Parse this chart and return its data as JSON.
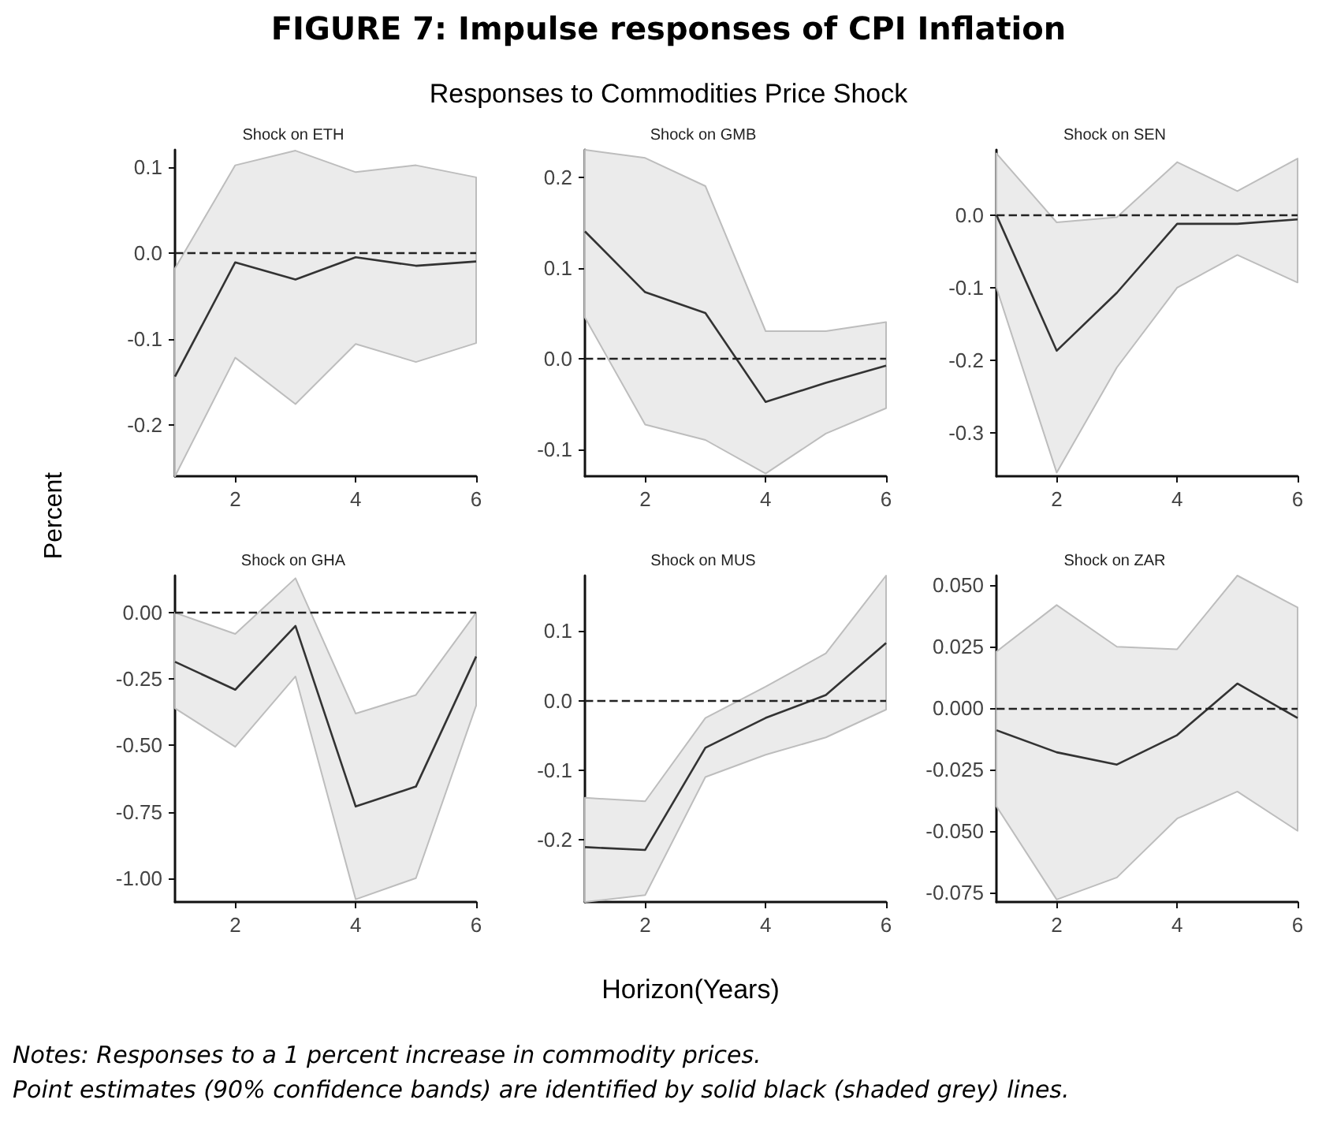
{
  "chart_data": [
    {
      "type": "other",
      "title": "FIGURE 7: Impulse responses of CPI Inflation",
      "subtitle": "Responses to Commodities Price Shock",
      "xlabel": "Horizon(Years)",
      "ylabel": "Percent",
      "annotations": [
        "Notes: Responses to a 1 percent increase in commodity prices.",
        "Point estimates (90% confidence bands) are identified by solid black (shaded grey) lines."
      ]
    },
    {
      "type": "line",
      "title": "Shock on ETH",
      "x": [
        1,
        2,
        3,
        4,
        5,
        6
      ],
      "xlim": [
        1,
        6
      ],
      "xticks": [
        2,
        4,
        6
      ],
      "ylim": [
        -0.26,
        0.12
      ],
      "yticks": [
        {
          "value": -0.2,
          "label": "-0.2"
        },
        {
          "value": -0.1,
          "label": "-0.1"
        },
        {
          "value": 0,
          "label": "0.0"
        },
        {
          "value": 0.1,
          "label": "0.1"
        }
      ],
      "marker": "none",
      "grid": false,
      "series": [
        {
          "color": "#333333",
          "values": [
            -0.144,
            -0.011,
            -0.031,
            -0.005,
            -0.015,
            -0.01
          ],
          "lower": [
            -0.26,
            -0.122,
            -0.176,
            -0.106,
            -0.127,
            -0.105
          ],
          "upper": [
            -0.018,
            0.102,
            0.119,
            0.094,
            0.102,
            0.088
          ]
        }
      ],
      "ref_lines": [
        {
          "axis": "y",
          "value": 0,
          "color": "#222222",
          "line_style": "dashed"
        }
      ]
    },
    {
      "type": "line",
      "title": "Shock on GMB",
      "x": [
        1,
        2,
        3,
        4,
        5,
        6
      ],
      "xlim": [
        1,
        6
      ],
      "xticks": [
        2,
        4,
        6
      ],
      "ylim": [
        -0.13,
        0.23
      ],
      "yticks": [
        {
          "value": -0.1,
          "label": "-0.1"
        },
        {
          "value": 0,
          "label": "0.0"
        },
        {
          "value": 0.1,
          "label": "0.1"
        },
        {
          "value": 0.2,
          "label": "0.2"
        }
      ],
      "marker": "none",
      "grid": false,
      "series": [
        {
          "color": "#333333",
          "values": [
            0.14,
            0.073,
            0.05,
            -0.048,
            -0.027,
            -0.008
          ],
          "lower": [
            0.045,
            -0.073,
            -0.09,
            -0.127,
            -0.083,
            -0.055
          ],
          "upper": [
            0.23,
            0.221,
            0.19,
            0.03,
            0.03,
            0.04
          ]
        }
      ],
      "ref_lines": [
        {
          "axis": "y",
          "value": 0,
          "color": "#222222",
          "line_style": "dashed"
        }
      ]
    },
    {
      "type": "line",
      "title": "Shock on SEN",
      "x": [
        1,
        2,
        3,
        4,
        5,
        6
      ],
      "xlim": [
        1,
        6
      ],
      "xticks": [
        2,
        4,
        6
      ],
      "ylim": [
        -0.36,
        0.09
      ],
      "yticks": [
        {
          "value": -0.3,
          "label": "-0.3"
        },
        {
          "value": -0.2,
          "label": "-0.2"
        },
        {
          "value": -0.1,
          "label": "-0.1"
        },
        {
          "value": 0,
          "label": "0.0"
        }
      ],
      "marker": "none",
      "grid": false,
      "series": [
        {
          "color": "#333333",
          "values": [
            0,
            -0.187,
            -0.107,
            -0.012,
            -0.012,
            -0.006
          ],
          "lower": [
            -0.1,
            -0.355,
            -0.21,
            -0.1,
            -0.055,
            -0.093
          ],
          "upper": [
            0.085,
            -0.01,
            -0.003,
            0.073,
            0.033,
            0.078
          ]
        }
      ],
      "ref_lines": [
        {
          "axis": "y",
          "value": 0,
          "color": "#222222",
          "line_style": "dashed"
        }
      ]
    },
    {
      "type": "line",
      "title": "Shock on GHA",
      "x": [
        1,
        2,
        3,
        4,
        5,
        6
      ],
      "xlim": [
        1,
        6
      ],
      "xticks": [
        2,
        4,
        6
      ],
      "ylim": [
        -1.09,
        0.14
      ],
      "yticks": [
        {
          "value": -1,
          "label": "-1.00"
        },
        {
          "value": -0.75,
          "label": "-0.75"
        },
        {
          "value": -0.5,
          "label": "-0.50"
        },
        {
          "value": -0.25,
          "label": "-0.25"
        },
        {
          "value": 0,
          "label": "0.00"
        }
      ],
      "marker": "none",
      "grid": false,
      "series": [
        {
          "color": "#333333",
          "values": [
            -0.185,
            -0.29,
            -0.05,
            -0.73,
            -0.655,
            -0.165
          ],
          "lower": [
            -0.36,
            -0.505,
            -0.24,
            -1.08,
            -1.0,
            -0.35
          ],
          "upper": [
            0,
            -0.08,
            0.13,
            -0.38,
            -0.31,
            0
          ]
        }
      ],
      "ref_lines": [
        {
          "axis": "y",
          "value": 0,
          "color": "#222222",
          "line_style": "dashed"
        }
      ]
    },
    {
      "type": "line",
      "title": "Shock on MUS",
      "x": [
        1,
        2,
        3,
        4,
        5,
        6
      ],
      "xlim": [
        1,
        6
      ],
      "xticks": [
        2,
        4,
        6
      ],
      "ylim": [
        -0.29,
        0.18
      ],
      "yticks": [
        {
          "value": -0.2,
          "label": "-0.2"
        },
        {
          "value": -0.1,
          "label": "-0.1"
        },
        {
          "value": 0,
          "label": "0.0"
        },
        {
          "value": 0.1,
          "label": "0.1"
        }
      ],
      "marker": "none",
      "grid": false,
      "series": [
        {
          "color": "#333333",
          "values": [
            -0.211,
            -0.215,
            -0.068,
            -0.025,
            0.008,
            0.083
          ],
          "lower": [
            -0.29,
            -0.28,
            -0.11,
            -0.078,
            -0.053,
            -0.013
          ],
          "upper": [
            -0.14,
            -0.145,
            -0.025,
            0.02,
            0.068,
            0.18
          ]
        }
      ],
      "ref_lines": [
        {
          "axis": "y",
          "value": 0,
          "color": "#222222",
          "line_style": "dashed"
        }
      ]
    },
    {
      "type": "line",
      "title": "Shock on ZAR",
      "x": [
        1,
        2,
        3,
        4,
        5,
        6
      ],
      "xlim": [
        1,
        6
      ],
      "xticks": [
        2,
        4,
        6
      ],
      "ylim": [
        -0.079,
        0.054
      ],
      "yticks": [
        {
          "value": -0.075,
          "label": "-0.075"
        },
        {
          "value": -0.05,
          "label": "-0.050"
        },
        {
          "value": -0.025,
          "label": "-0.025"
        },
        {
          "value": 0,
          "label": "0.000"
        },
        {
          "value": 0.025,
          "label": "0.025"
        },
        {
          "value": 0.05,
          "label": "0.050"
        }
      ],
      "marker": "none",
      "grid": false,
      "series": [
        {
          "color": "#333333",
          "values": [
            -0.009,
            -0.018,
            -0.023,
            -0.011,
            0.01,
            -0.004
          ],
          "lower": [
            -0.04,
            -0.078,
            -0.069,
            -0.045,
            -0.034,
            -0.05
          ],
          "upper": [
            0.023,
            0.042,
            0.025,
            0.024,
            0.054,
            0.041
          ]
        }
      ],
      "ref_lines": [
        {
          "axis": "y",
          "value": 0,
          "color": "#222222",
          "line_style": "dashed"
        }
      ]
    }
  ]
}
